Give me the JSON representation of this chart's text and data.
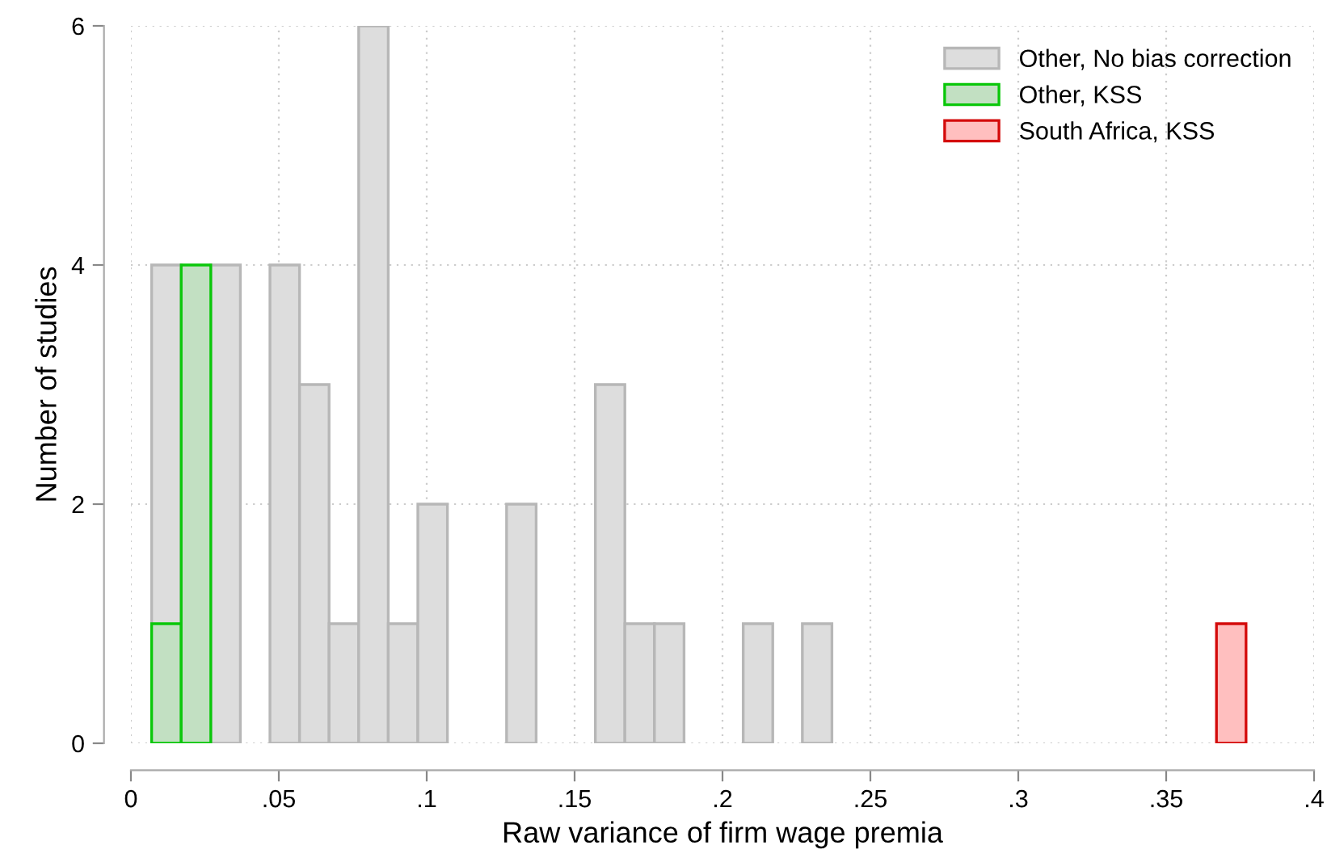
{
  "chart_data": {
    "type": "histogram",
    "xlabel": "Raw variance of firm wage premia",
    "ylabel": "Number of studies",
    "bins": [
      0.007,
      0.017,
      0.027,
      0.037,
      0.047,
      0.057,
      0.067,
      0.077,
      0.087,
      0.097,
      0.107,
      0.117,
      0.127,
      0.137,
      0.147,
      0.157,
      0.167,
      0.177,
      0.187,
      0.197,
      0.207,
      0.217,
      0.227,
      0.237,
      0.247,
      0.257,
      0.267,
      0.277,
      0.287,
      0.297,
      0.307,
      0.317,
      0.327,
      0.337,
      0.347,
      0.357,
      0.367,
      0.377
    ],
    "series": [
      {
        "name": "Other, No bias correction",
        "color": "#dddddd",
        "values": [
          4,
          null,
          4,
          null,
          4,
          3,
          1,
          6,
          1,
          2,
          null,
          null,
          2,
          null,
          null,
          3,
          1,
          1,
          null,
          null,
          1,
          null,
          1,
          null,
          null,
          null,
          null,
          null,
          null,
          null,
          null,
          null,
          null,
          null,
          null,
          null,
          null
        ]
      },
      {
        "name": "Other, KSS",
        "color": "#c2e0c2",
        "values": [
          1,
          4,
          null,
          null,
          null,
          null,
          null,
          null,
          null,
          null,
          null,
          null,
          null,
          null,
          null,
          null,
          null,
          null,
          null,
          null,
          null,
          null,
          null,
          null,
          null,
          null,
          null,
          null,
          null,
          null,
          null,
          null,
          null,
          null,
          null,
          null,
          null
        ]
      },
      {
        "name": "South Africa, KSS",
        "color": "#ffbfbf",
        "values": [
          null,
          null,
          null,
          null,
          null,
          null,
          null,
          null,
          null,
          null,
          null,
          null,
          null,
          null,
          null,
          null,
          null,
          null,
          null,
          null,
          null,
          null,
          null,
          null,
          null,
          null,
          null,
          null,
          null,
          null,
          null,
          null,
          null,
          null,
          null,
          null,
          1
        ]
      }
    ],
    "xlim": [
      0,
      0.4
    ],
    "ylim": [
      0,
      6
    ],
    "xticks": [
      0,
      {
        "value": 0.05,
        "label": ".05"
      },
      {
        "value": 0.1,
        "label": ".1"
      },
      {
        "value": 0.15,
        "label": ".15"
      },
      {
        "value": 0.2,
        "label": ".2"
      },
      {
        "value": 0.25,
        "label": ".25"
      },
      {
        "value": 0.3,
        "label": ".3"
      },
      {
        "value": 0.35,
        "label": ".35"
      },
      {
        "value": 0.4,
        "label": ".4"
      }
    ],
    "yticks": [
      0,
      2,
      4,
      6
    ],
    "grid": true,
    "legend": "top right"
  }
}
